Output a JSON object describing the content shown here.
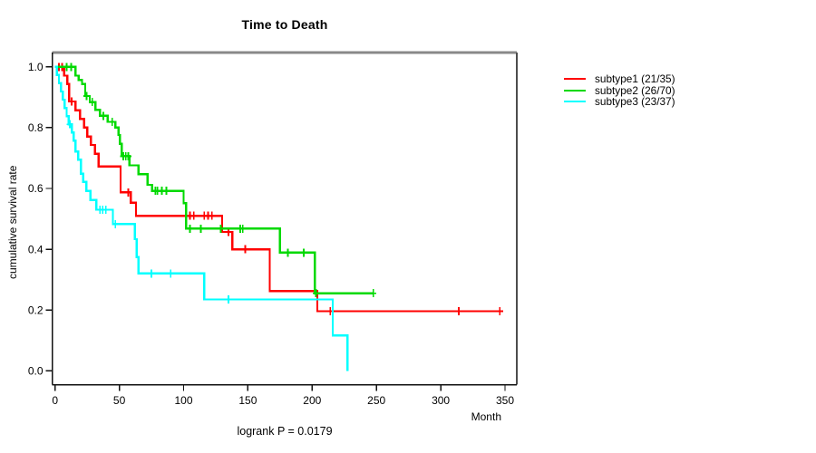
{
  "chart_data": {
    "type": "line",
    "variant": "kaplan_meier_step",
    "title": "Time to Death",
    "xlabel": "Month",
    "ylabel": "cumulative survival rate",
    "annotation": "logrank P = 0.0179",
    "grid": false,
    "legend_position": "outside-top-right",
    "x_axis": {
      "min": 0,
      "max": 360,
      "tick_values": [
        0,
        50,
        100,
        150,
        200,
        250,
        300,
        350
      ],
      "tick_labels": [
        "0",
        "50",
        "100",
        "150",
        "200",
        "250",
        "300",
        "350"
      ]
    },
    "y_axis": {
      "min": 0,
      "max": 1,
      "tick_values": [
        0,
        0.2,
        0.4,
        0.6,
        0.8,
        1
      ],
      "tick_labels": [
        "0.0",
        "0.2",
        "0.4",
        "0.6",
        "0.8",
        "1.0"
      ]
    },
    "series": [
      {
        "name": "subtype1 (21/35)",
        "color": "#ff0000",
        "end": 346,
        "steps": [
          [
            0,
            1
          ],
          [
            7,
            0.971
          ],
          [
            9.5,
            0.943
          ],
          [
            11,
            0.886
          ],
          [
            16,
            0.857
          ],
          [
            19.5,
            0.829
          ],
          [
            22.5,
            0.8
          ],
          [
            25,
            0.771
          ],
          [
            28,
            0.743
          ],
          [
            31,
            0.714
          ],
          [
            34,
            0.672
          ],
          [
            51,
            0.587
          ],
          [
            59,
            0.553
          ],
          [
            63,
            0.51
          ],
          [
            130,
            0.457
          ],
          [
            138,
            0.4
          ],
          [
            167,
            0.263
          ],
          [
            204,
            0.196
          ]
        ],
        "censors": [
          [
            3,
            1
          ],
          [
            5.5,
            1
          ],
          [
            13,
            0.886
          ],
          [
            57,
            0.587
          ],
          [
            105,
            0.51
          ],
          [
            108,
            0.51
          ],
          [
            116,
            0.51
          ],
          [
            119,
            0.51
          ],
          [
            122,
            0.51
          ],
          [
            135,
            0.457
          ],
          [
            148,
            0.4
          ],
          [
            214,
            0.196
          ],
          [
            314,
            0.196
          ],
          [
            346,
            0.196
          ]
        ]
      },
      {
        "name": "subtype2 (26/70)",
        "color": "#00d900",
        "end": 247.5,
        "steps": [
          [
            0,
            1
          ],
          [
            16,
            0.971
          ],
          [
            18.5,
            0.957
          ],
          [
            21,
            0.943
          ],
          [
            23.5,
            0.904
          ],
          [
            27,
            0.884
          ],
          [
            31.5,
            0.859
          ],
          [
            35,
            0.839
          ],
          [
            41,
            0.819
          ],
          [
            47,
            0.8
          ],
          [
            49.5,
            0.776
          ],
          [
            50.5,
            0.747
          ],
          [
            52,
            0.706
          ],
          [
            58,
            0.676
          ],
          [
            65,
            0.647
          ],
          [
            72,
            0.612
          ],
          [
            75.5,
            0.592
          ],
          [
            100,
            0.551
          ],
          [
            102,
            0.468
          ],
          [
            175,
            0.389
          ],
          [
            202,
            0.255
          ]
        ],
        "censors": [
          [
            9,
            1
          ],
          [
            12.5,
            1
          ],
          [
            24.5,
            0.904
          ],
          [
            29,
            0.884
          ],
          [
            37.5,
            0.839
          ],
          [
            44.5,
            0.819
          ],
          [
            53,
            0.706
          ],
          [
            55,
            0.706
          ],
          [
            57,
            0.706
          ],
          [
            78,
            0.592
          ],
          [
            79.5,
            0.592
          ],
          [
            83,
            0.592
          ],
          [
            86.5,
            0.592
          ],
          [
            105,
            0.468
          ],
          [
            113.5,
            0.468
          ],
          [
            129,
            0.468
          ],
          [
            144,
            0.468
          ],
          [
            146,
            0.468
          ],
          [
            181,
            0.389
          ],
          [
            193.5,
            0.389
          ],
          [
            203,
            0.255
          ],
          [
            247.5,
            0.255
          ]
        ]
      },
      {
        "name": "subtype3 (23/37)",
        "color": "#00ffff",
        "end": 227.5,
        "steps": [
          [
            0,
            1
          ],
          [
            1.5,
            0.973
          ],
          [
            3,
            0.946
          ],
          [
            4.5,
            0.919
          ],
          [
            6,
            0.892
          ],
          [
            7.5,
            0.865
          ],
          [
            9,
            0.838
          ],
          [
            10.5,
            0.811
          ],
          [
            13,
            0.784
          ],
          [
            14.5,
            0.757
          ],
          [
            16,
            0.722
          ],
          [
            18,
            0.695
          ],
          [
            20,
            0.649
          ],
          [
            22,
            0.622
          ],
          [
            24.5,
            0.592
          ],
          [
            27.5,
            0.562
          ],
          [
            32,
            0.53
          ],
          [
            45,
            0.483
          ],
          [
            62,
            0.433
          ],
          [
            63.5,
            0.374
          ],
          [
            65,
            0.32
          ],
          [
            116,
            0.235
          ],
          [
            216,
            0.116
          ],
          [
            227.5,
            0
          ]
        ],
        "censors": [
          [
            11.5,
            0.811
          ],
          [
            35,
            0.53
          ],
          [
            37,
            0.53
          ],
          [
            39.5,
            0.53
          ],
          [
            47,
            0.483
          ],
          [
            75,
            0.32
          ],
          [
            90,
            0.32
          ],
          [
            135,
            0.235
          ]
        ]
      }
    ]
  }
}
